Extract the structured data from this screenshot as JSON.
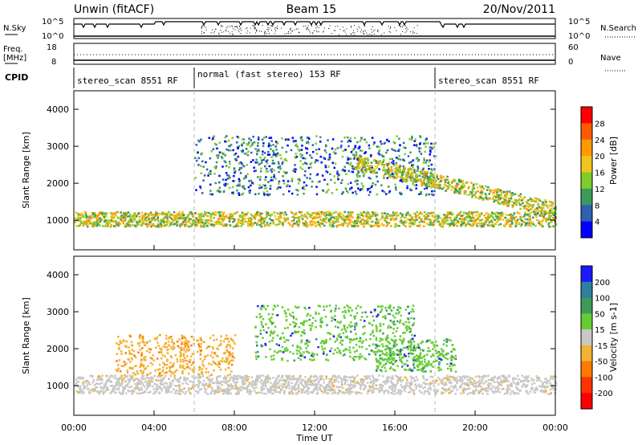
{
  "header": {
    "station": "Unwin (fitACF)",
    "beam": "Beam 15",
    "date": "20/Nov/2011"
  },
  "left_labels": {
    "nsky": "N.Sky",
    "freq_line1": "Freq.",
    "freq_line2": "[MHz]",
    "cpid": "CPID"
  },
  "right_labels": {
    "nsearch": "N.Search",
    "nave": "Nave"
  },
  "noise_panel": {
    "left_ticks": [
      "10^5",
      "10^0"
    ],
    "right_ticks": [
      "10^5",
      "10^0"
    ]
  },
  "freq_panel": {
    "left_ticks": [
      "18",
      "8"
    ],
    "right_ticks": [
      "60",
      "0"
    ]
  },
  "cpid_segments": [
    {
      "label": "stereo_scan 8551 RF",
      "start_h": 0,
      "end_h": 6
    },
    {
      "label": "normal (fast stereo) 153 RF",
      "start_h": 6,
      "end_h": 18
    },
    {
      "label": "stereo_scan 8551 RF",
      "start_h": 18,
      "end_h": 24
    }
  ],
  "power_colorbar": {
    "label": "Power [dB]",
    "ticks": [
      "28",
      "24",
      "20",
      "16",
      "12",
      "8",
      "4"
    ],
    "colors": [
      "#ff0000",
      "#ff5a00",
      "#ff9a00",
      "#f2c41d",
      "#7fcc2a",
      "#3c9a5a",
      "#2d5fb3",
      "#0000ff"
    ]
  },
  "velocity_colorbar": {
    "label": "Velocity [m s-1]",
    "ticks": [
      "200",
      "100",
      "50",
      "15",
      "-15",
      "-50",
      "-100",
      "-200"
    ],
    "colors": [
      "#1a1aff",
      "#2e7fa0",
      "#3c9a5a",
      "#66cc33",
      "#c8c8c8",
      "#f2b233",
      "#ff7a00",
      "#ff3300",
      "#ff0000"
    ]
  },
  "chart_data": [
    {
      "type": "heatmap",
      "panel": "power",
      "ylabel": "Slant Range [km]",
      "ylim": [
        200,
        4500
      ],
      "yticks": [
        "1000",
        "2000",
        "3000",
        "4000"
      ],
      "xlim": [
        0,
        24
      ],
      "bands": [
        {
          "t0": 0,
          "t1": 24,
          "r0": 850,
          "r1": 1250,
          "peak_db": 22,
          "ramp": "edge"
        },
        {
          "t0": 6,
          "t1": 18,
          "r0": 1700,
          "r1": 3300,
          "peak_db": 14,
          "ramp": "mid"
        },
        {
          "t0": 14,
          "t1": 24,
          "r0": 1300,
          "r1": 1800,
          "peak_db": 24,
          "ramp": "slope"
        }
      ]
    },
    {
      "type": "heatmap",
      "panel": "velocity",
      "ylabel": "Slant Range [km]",
      "ylim": [
        200,
        4500
      ],
      "yticks": [
        "1000",
        "2000",
        "3000",
        "4000"
      ],
      "xlim": [
        0,
        24
      ],
      "bands": [
        {
          "t0": 0,
          "t1": 24,
          "r0": 800,
          "r1": 1300,
          "vel": 0
        },
        {
          "t0": 2,
          "t1": 8,
          "r0": 1300,
          "r1": 2400,
          "vel": -50
        },
        {
          "t0": 9,
          "t1": 17,
          "r0": 1700,
          "r1": 3200,
          "vel": 50
        },
        {
          "t0": 15,
          "t1": 19,
          "r0": 1400,
          "r1": 2300,
          "vel": 80
        }
      ]
    }
  ],
  "x_axis": {
    "label": "Time UT",
    "ticks": [
      "00:00",
      "04:00",
      "08:00",
      "12:00",
      "16:00",
      "20:00",
      "00:00"
    ]
  }
}
